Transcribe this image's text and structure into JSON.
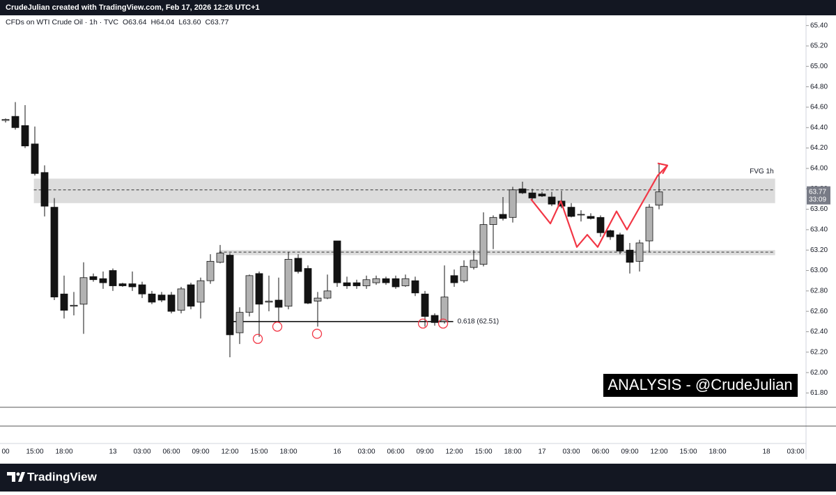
{
  "header": {
    "credit": "CrudeJulian created with TradingView.com, Feb 17, 2026 12:26 UTC+1",
    "legend": "CFDs on WTI Crude Oil · 1h · TVC",
    "ohlc_labels": [
      "O63.64",
      "H64.04",
      "L63.60",
      "C63.77"
    ]
  },
  "footer": {
    "brand": "TradingView"
  },
  "chart_data": {
    "type": "candlestick",
    "categories": [
      "00",
      null,
      null,
      "15:00",
      null,
      null,
      "18:00",
      null,
      null,
      null,
      null,
      "13",
      null,
      null,
      "03:00",
      null,
      null,
      "06:00",
      null,
      null,
      "09:00",
      null,
      null,
      "12:00",
      null,
      null,
      "15:00",
      null,
      null,
      "18:00",
      null,
      null,
      null,
      null,
      "16",
      null,
      null,
      "03:00",
      null,
      null,
      "06:00",
      null,
      null,
      "09:00",
      null,
      null,
      "12:00",
      null,
      null,
      "15:00",
      null,
      null,
      "18:00",
      null,
      null,
      "17",
      null,
      null,
      "03:00",
      null,
      null,
      "06:00",
      null,
      null,
      "09:00",
      null,
      null,
      "12:00",
      null,
      null,
      "15:00",
      null,
      null,
      "18:00",
      null,
      null,
      null,
      null,
      "18",
      null,
      null,
      "03:00"
    ],
    "open": [
      64.47,
      64.51,
      64.42,
      64.24,
      63.96,
      63.62,
      62.77,
      62.65,
      62.67,
      62.94,
      62.92,
      63.0,
      62.87,
      62.87,
      62.86,
      62.77,
      62.76,
      62.76,
      62.61,
      62.86,
      62.69,
      62.9,
      63.08,
      63.15,
      62.39,
      62.59,
      62.97,
      62.69,
      62.71,
      62.65,
      63.12,
      63.02,
      62.7,
      62.73,
      63.29,
      62.88,
      62.88,
      62.85,
      62.88,
      62.92,
      62.92,
      62.85,
      62.9,
      62.77,
      62.56,
      62.5,
      62.95,
      62.9,
      63.03,
      63.06,
      63.45,
      63.55,
      63.52,
      63.8,
      63.76,
      63.75,
      63.72,
      63.68,
      63.62,
      63.55,
      63.53,
      63.52,
      63.39,
      63.35,
      63.2,
      63.09,
      63.29,
      63.64,
      null,
      null,
      null,
      null,
      null,
      null,
      null,
      null,
      null,
      null,
      null,
      null,
      null,
      null
    ],
    "high": [
      64.49,
      64.65,
      64.62,
      64.41,
      64.03,
      63.71,
      62.95,
      62.79,
      63.08,
      62.97,
      62.99,
      63.02,
      62.88,
      62.99,
      62.89,
      62.8,
      62.79,
      62.79,
      62.84,
      62.88,
      62.93,
      63.16,
      63.25,
      63.17,
      62.64,
      62.96,
      62.99,
      62.95,
      62.93,
      63.18,
      63.16,
      63.05,
      62.79,
      62.96,
      63.29,
      62.94,
      62.91,
      62.95,
      62.95,
      62.94,
      62.95,
      62.96,
      62.94,
      62.8,
      62.58,
      63.05,
      63.01,
      63.1,
      63.2,
      63.57,
      63.54,
      63.72,
      63.82,
      63.87,
      63.8,
      63.77,
      63.77,
      63.78,
      63.66,
      63.59,
      63.56,
      63.54,
      63.4,
      63.37,
      63.27,
      63.3,
      63.65,
      64.04,
      null,
      null,
      null,
      null,
      null,
      null,
      null,
      null,
      null,
      null,
      null,
      null,
      null,
      null
    ],
    "low": [
      64.45,
      64.38,
      64.2,
      63.93,
      63.53,
      62.71,
      62.53,
      62.56,
      62.38,
      62.89,
      62.82,
      62.8,
      62.84,
      62.8,
      62.73,
      62.67,
      62.69,
      62.58,
      62.58,
      62.62,
      62.53,
      62.87,
      63.07,
      62.15,
      62.28,
      62.55,
      62.35,
      62.6,
      62.5,
      62.62,
      62.97,
      62.67,
      62.45,
      62.72,
      62.84,
      62.82,
      62.82,
      62.82,
      62.86,
      62.86,
      62.82,
      62.84,
      62.75,
      62.45,
      62.46,
      62.48,
      62.84,
      62.88,
      63.01,
      63.04,
      63.21,
      63.49,
      63.47,
      63.75,
      63.69,
      63.72,
      63.63,
      63.61,
      63.52,
      63.48,
      63.5,
      63.33,
      63.3,
      63.16,
      62.97,
      62.99,
      63.18,
      63.6,
      null,
      null,
      null,
      null,
      null,
      null,
      null,
      null,
      null,
      null,
      null,
      null,
      null,
      null
    ],
    "close": [
      64.48,
      64.4,
      64.22,
      63.95,
      63.63,
      62.74,
      62.61,
      62.66,
      62.93,
      62.91,
      62.88,
      62.85,
      62.85,
      62.84,
      62.77,
      62.69,
      62.71,
      62.6,
      62.82,
      62.65,
      62.9,
      63.09,
      63.17,
      62.37,
      62.59,
      62.95,
      62.67,
      62.7,
      62.64,
      63.11,
      62.99,
      62.68,
      62.73,
      62.8,
      62.88,
      62.85,
      62.85,
      62.91,
      62.92,
      62.88,
      62.84,
      62.92,
      62.78,
      62.55,
      62.49,
      62.74,
      62.88,
      63.04,
      63.1,
      63.45,
      63.52,
      63.51,
      63.79,
      63.76,
      63.71,
      63.73,
      63.65,
      63.63,
      63.53,
      63.55,
      63.51,
      63.37,
      63.33,
      63.19,
      63.08,
      63.27,
      63.62,
      63.77,
      null,
      null,
      null,
      null,
      null,
      null,
      null,
      null,
      null,
      null,
      null,
      null,
      null,
      null
    ],
    "up_color": "#b2b2b2",
    "down_color": "#131313",
    "ylim": [
      61.66,
      65.5
    ],
    "yticks": [
      {
        "value": 65.4,
        "label": "65.40"
      },
      {
        "value": 65.2,
        "label": "65.20"
      },
      {
        "value": 65.0,
        "label": "65.00"
      },
      {
        "value": 64.8,
        "label": "64.80"
      },
      {
        "value": 64.6,
        "label": "64.60"
      },
      {
        "value": 64.4,
        "label": "64.40"
      },
      {
        "value": 64.2,
        "label": "64.20"
      },
      {
        "value": 64.0,
        "label": "64.00"
      },
      {
        "value": 63.8,
        "label": "63.80"
      },
      {
        "value": 63.6,
        "label": "63.60"
      },
      {
        "value": 63.4,
        "label": "63.40"
      },
      {
        "value": 63.2,
        "label": "63.20"
      },
      {
        "value": 63.0,
        "label": "63.00"
      },
      {
        "value": 62.8,
        "label": "62.80"
      },
      {
        "value": 62.6,
        "label": "62.60"
      },
      {
        "value": 62.4,
        "label": "62.40"
      },
      {
        "value": 62.2,
        "label": "62.20"
      },
      {
        "value": 62.0,
        "label": "62.00"
      },
      {
        "value": 61.8,
        "label": "61.80"
      }
    ],
    "grid": false,
    "last_price": {
      "value": 63.77,
      "label": "63.77",
      "countdown": "33:09"
    },
    "zones": [
      {
        "top": 63.9,
        "bottom": 63.66,
        "mid": 63.79,
        "start": 2.9,
        "end": 78.9,
        "label": "FVG 1h"
      },
      {
        "top": 63.2,
        "bottom": 63.15,
        "mid": 63.18,
        "start": 21.9,
        "end": 78.9
      }
    ],
    "fib": {
      "price": 62.5,
      "start": 23.2,
      "end": 45.9,
      "label": "0.618 (62.51)"
    },
    "circles": {
      "x": [
        25.86,
        27.86,
        31.93,
        42.79,
        44.86
      ],
      "y": [
        62.33,
        62.45,
        62.38,
        62.48,
        62.48
      ],
      "color": "#f23645"
    },
    "projection": {
      "x": [
        53.86,
        55.86,
        56.93,
        58.57,
        59.64,
        60.71,
        62.64,
        63.71,
        66.86,
        67.86
      ],
      "y": [
        63.7,
        63.46,
        63.68,
        63.23,
        63.35,
        63.23,
        63.58,
        63.4,
        63.93,
        64.03
      ],
      "color": "#f23645"
    },
    "annotation": "ANALYSIS - @CrudeJulian"
  }
}
